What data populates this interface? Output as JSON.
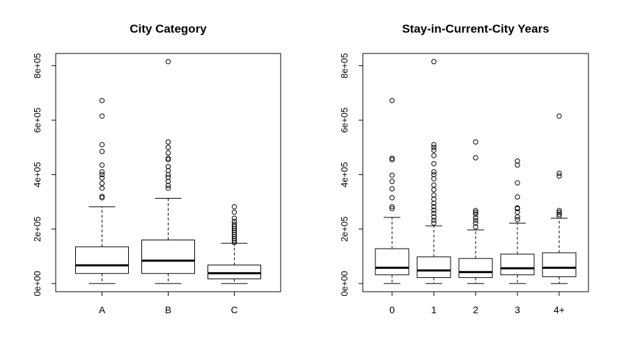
{
  "chart_data": [
    {
      "type": "boxplot",
      "title": "City Category",
      "categories": [
        "A",
        "B",
        "C"
      ],
      "y_ticks": [
        0,
        200000,
        400000,
        600000,
        800000
      ],
      "y_tick_labels": [
        "0e+00",
        "2e+05",
        "4e+05",
        "6e+05",
        "8e+05"
      ],
      "ylim": [
        -30000,
        845000
      ],
      "boxes": [
        {
          "min": 0,
          "q1": 37000,
          "median": 67000,
          "q3": 135000,
          "max": 282000,
          "outliers": [
            315000,
            320000,
            350000,
            368000,
            388000,
            400000,
            410000,
            435000,
            485000,
            510000,
            615000,
            672000
          ]
        },
        {
          "min": 0,
          "q1": 37000,
          "median": 84000,
          "q3": 160000,
          "max": 313000,
          "outliers": [
            350000,
            360000,
            375000,
            390000,
            400000,
            415000,
            430000,
            455000,
            460000,
            480000,
            500000,
            520000,
            815000
          ]
        },
        {
          "min": 0,
          "q1": 17000,
          "median": 38000,
          "q3": 68000,
          "max": 148000,
          "outliers": [
            150000,
            158000,
            165000,
            172000,
            180000,
            188000,
            195000,
            202000,
            210000,
            218000,
            228000,
            240000,
            262000,
            282000
          ]
        }
      ]
    },
    {
      "type": "boxplot",
      "title": "Stay-in-Current-City Years",
      "categories": [
        "0",
        "1",
        "2",
        "3",
        "4+"
      ],
      "y_ticks": [
        0,
        200000,
        400000,
        600000,
        800000
      ],
      "y_tick_labels": [
        "0e+00",
        "2e+05",
        "4e+05",
        "6e+05",
        "8e+05"
      ],
      "ylim": [
        -30000,
        845000
      ],
      "boxes": [
        {
          "min": 0,
          "q1": 32000,
          "median": 58000,
          "q3": 128000,
          "max": 243000,
          "outliers": [
            275000,
            282000,
            315000,
            348000,
            375000,
            398000,
            455000,
            460000,
            672000
          ]
        },
        {
          "min": 0,
          "q1": 22000,
          "median": 48000,
          "q3": 98000,
          "max": 212000,
          "outliers": [
            222000,
            232000,
            245000,
            258000,
            270000,
            282000,
            295000,
            310000,
            325000,
            345000,
            362000,
            385000,
            400000,
            410000,
            440000,
            470000,
            490000,
            500000,
            510000,
            815000
          ]
        },
        {
          "min": 0,
          "q1": 22000,
          "median": 42000,
          "q3": 92000,
          "max": 197000,
          "outliers": [
            208000,
            222000,
            232000,
            242000,
            255000,
            262000,
            268000,
            462000,
            520000
          ]
        },
        {
          "min": 0,
          "q1": 32000,
          "median": 56000,
          "q3": 108000,
          "max": 222000,
          "outliers": [
            235000,
            245000,
            262000,
            275000,
            278000,
            318000,
            370000,
            435000,
            450000
          ]
        },
        {
          "min": 0,
          "q1": 25000,
          "median": 58000,
          "q3": 113000,
          "max": 240000,
          "outliers": [
            248000,
            255000,
            262000,
            268000,
            395000,
            405000,
            615000
          ]
        }
      ]
    }
  ]
}
